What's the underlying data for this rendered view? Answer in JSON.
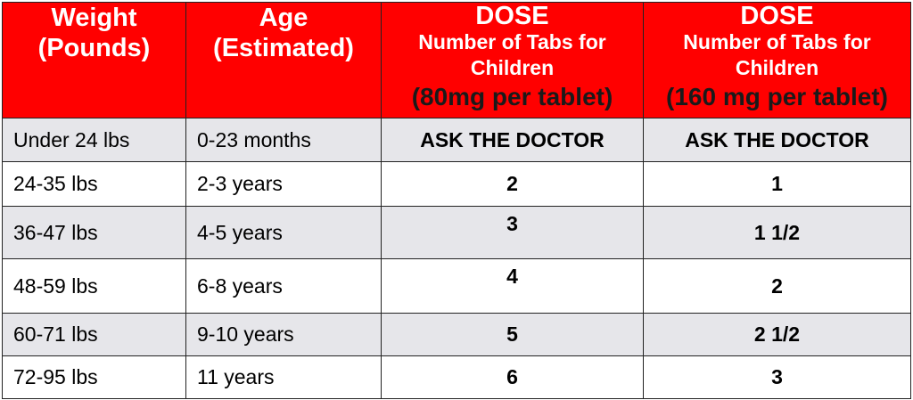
{
  "colors": {
    "header_background": "#ff0000",
    "header_text": "#ffffff",
    "strength_text": "#1a1a1a",
    "shaded_row": "#e6e6ea",
    "plain_row": "#ffffff",
    "border": "#222222"
  },
  "header": {
    "weight_line1": "Weight",
    "weight_line2": "(Pounds)",
    "age_line1": "Age",
    "age_line2": "(Estimated)",
    "dose80": {
      "title": "DOSE",
      "line2": "Number of Tabs for",
      "line3": "Children",
      "strength": "(80mg per tablet)"
    },
    "dose160": {
      "title": "DOSE",
      "line2": "Number of Tabs for",
      "line3": "Children",
      "strength": "(160 mg per tablet)"
    }
  },
  "rows": [
    {
      "weight": "Under 24 lbs",
      "age": "0-23 months",
      "dose80": "ASK THE DOCTOR",
      "dose160": "ASK THE DOCTOR"
    },
    {
      "weight": "24-35 lbs",
      "age": "2-3 years",
      "dose80": "2",
      "dose160": "1"
    },
    {
      "weight": "36-47 lbs",
      "age": "4-5 years",
      "dose80": "3",
      "dose160": "1 1/2"
    },
    {
      "weight": "48-59 lbs",
      "age": "6-8 years",
      "dose80": "4",
      "dose160": "2"
    },
    {
      "weight": "60-71 lbs",
      "age": "9-10 years",
      "dose80": "5",
      "dose160": "2 1/2"
    },
    {
      "weight": "72-95 lbs",
      "age": "11 years",
      "dose80": "6",
      "dose160": "3"
    }
  ]
}
